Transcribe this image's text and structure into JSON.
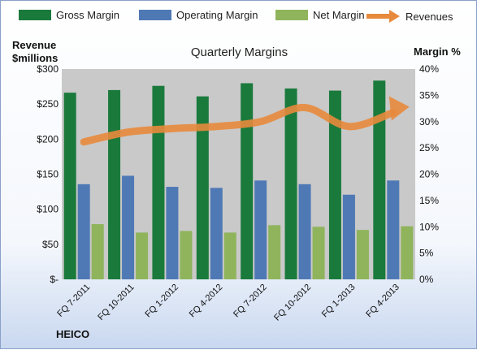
{
  "chart_data": {
    "type": "bar",
    "title": "Quarterly Margins",
    "categories": [
      "FQ 7-2011",
      "FQ 10-2011",
      "FQ 1-2012",
      "FQ 4-2012",
      "FQ 7-2012",
      "FQ 10-2012",
      "FQ 1-2013",
      "FQ 4-2013"
    ],
    "series": [
      {
        "name": "Gross Margin",
        "axis": "right",
        "color": "#1a7a3c",
        "values": [
          35.5,
          36.0,
          36.8,
          34.8,
          37.3,
          36.3,
          35.9,
          37.8
        ]
      },
      {
        "name": "Operating Margin",
        "axis": "right",
        "color": "#4f79b5",
        "values": [
          18.1,
          19.7,
          17.6,
          17.4,
          18.8,
          18.1,
          16.1,
          18.8
        ]
      },
      {
        "name": "Net Margin",
        "axis": "right",
        "color": "#8fb45c",
        "values": [
          10.5,
          8.9,
          9.2,
          8.9,
          10.3,
          10.0,
          9.4,
          10.1
        ]
      },
      {
        "name": "Revenues",
        "axis": "left",
        "type": "line",
        "color": "#e88a3c",
        "values": [
          196,
          210,
          215,
          218,
          225,
          245,
          218,
          238
        ]
      }
    ],
    "left_axis": {
      "label_line1": "Revenue",
      "label_line2": "$millions",
      "ylim": [
        0,
        300
      ],
      "ticks": [
        "$-",
        "$50",
        "$100",
        "$150",
        "$200",
        "$250",
        "$300"
      ]
    },
    "right_axis": {
      "label": "Margin %",
      "ylim": [
        0,
        40
      ],
      "ticks": [
        "0%",
        "5%",
        "10%",
        "15%",
        "20%",
        "25%",
        "30%",
        "35%",
        "40%"
      ]
    },
    "grid": false,
    "legend_position": "top",
    "plot_bg": "#c9c9c9",
    "footer": "HEICO"
  }
}
